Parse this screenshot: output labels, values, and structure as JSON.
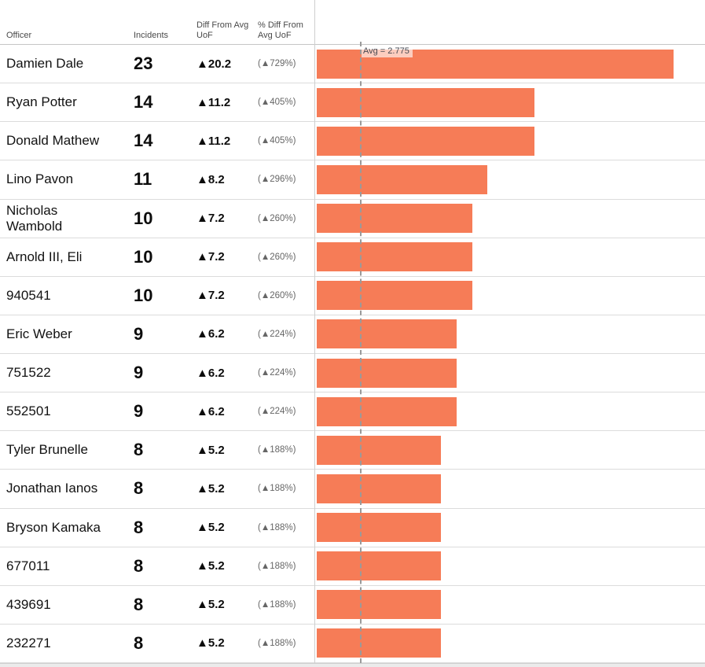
{
  "columns": {
    "officer": "Officer",
    "incidents": "Incidents",
    "diff_from_avg_uof": "Diff From Avg UoF",
    "pct_diff_from_avg_uof": "% Diff From Avg UoF"
  },
  "rows": [
    {
      "officer": "Damien Dale",
      "incidents": "23",
      "diff": "▲20.2",
      "pct_diff": "(▲729%)",
      "value": 23
    },
    {
      "officer": "Ryan Potter",
      "incidents": "14",
      "diff": "▲11.2",
      "pct_diff": "(▲405%)",
      "value": 14
    },
    {
      "officer": "Donald Mathew",
      "incidents": "14",
      "diff": "▲11.2",
      "pct_diff": "(▲405%)",
      "value": 14
    },
    {
      "officer": "Lino Pavon",
      "incidents": "11",
      "diff": "▲8.2",
      "pct_diff": "(▲296%)",
      "value": 11
    },
    {
      "officer": "Nicholas Wambold",
      "incidents": "10",
      "diff": "▲7.2",
      "pct_diff": "(▲260%)",
      "value": 10
    },
    {
      "officer": "Arnold III, Eli",
      "incidents": "10",
      "diff": "▲7.2",
      "pct_diff": "(▲260%)",
      "value": 10
    },
    {
      "officer": "940541",
      "incidents": "10",
      "diff": "▲7.2",
      "pct_diff": "(▲260%)",
      "value": 10
    },
    {
      "officer": "Eric Weber",
      "incidents": "9",
      "diff": "▲6.2",
      "pct_diff": "(▲224%)",
      "value": 9
    },
    {
      "officer": "751522",
      "incidents": "9",
      "diff": "▲6.2",
      "pct_diff": "(▲224%)",
      "value": 9
    },
    {
      "officer": "552501",
      "incidents": "9",
      "diff": "▲6.2",
      "pct_diff": "(▲224%)",
      "value": 9
    },
    {
      "officer": "Tyler Brunelle",
      "incidents": "8",
      "diff": "▲5.2",
      "pct_diff": "(▲188%)",
      "value": 8
    },
    {
      "officer": "Jonathan Ianos",
      "incidents": "8",
      "diff": "▲5.2",
      "pct_diff": "(▲188%)",
      "value": 8
    },
    {
      "officer": "Bryson Kamaka",
      "incidents": "8",
      "diff": "▲5.2",
      "pct_diff": "(▲188%)",
      "value": 8
    },
    {
      "officer": "677011",
      "incidents": "8",
      "diff": "▲5.2",
      "pct_diff": "(▲188%)",
      "value": 8
    },
    {
      "officer": "439691",
      "incidents": "8",
      "diff": "▲5.2",
      "pct_diff": "(▲188%)",
      "value": 8
    },
    {
      "officer": "232271",
      "incidents": "8",
      "diff": "▲5.2",
      "pct_diff": "(▲188%)",
      "value": 8
    }
  ],
  "chart_data": {
    "type": "bar",
    "orientation": "horizontal",
    "title": "",
    "xlabel": "Incidents",
    "ylabel": "Officer",
    "categories": [
      "Damien Dale",
      "Ryan Potter",
      "Donald Mathew",
      "Lino Pavon",
      "Nicholas Wambold",
      "Arnold III, Eli",
      "940541",
      "Eric Weber",
      "751522",
      "552501",
      "Tyler Brunelle",
      "Jonathan Ianos",
      "Bryson Kamaka",
      "677011",
      "439691",
      "232271"
    ],
    "values": [
      23,
      14,
      14,
      11,
      10,
      10,
      10,
      9,
      9,
      9,
      8,
      8,
      8,
      8,
      8,
      8
    ],
    "xlim": [
      0,
      25
    ],
    "grid": "row-separators-only",
    "legend": "none",
    "bar_color": "#F67C57",
    "reference_line": {
      "value": 2.775,
      "label": "Avg = 2.775",
      "style": "dashed",
      "color": "#9a9a9a"
    }
  }
}
